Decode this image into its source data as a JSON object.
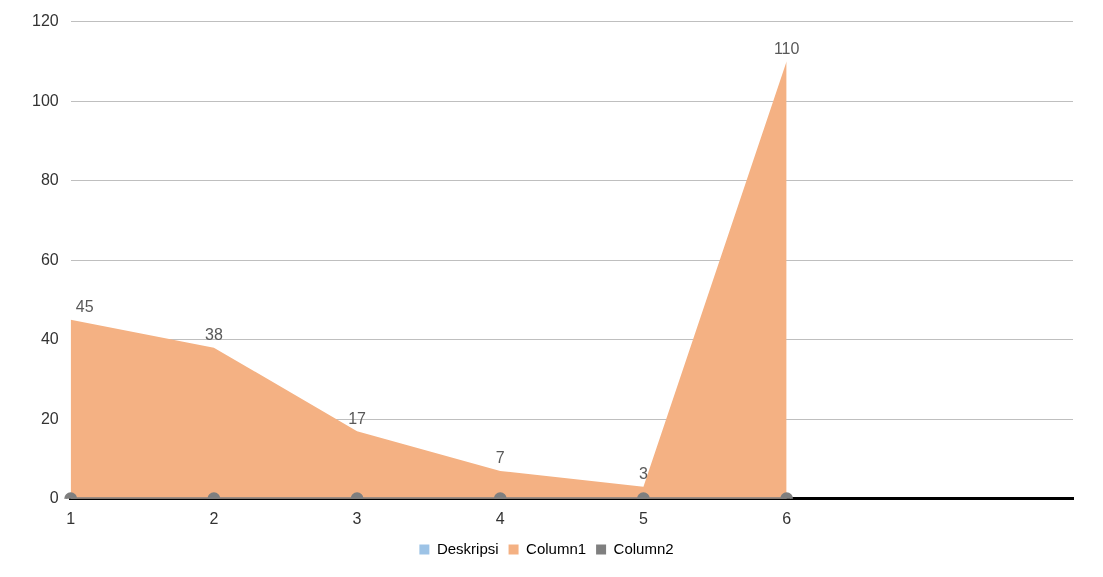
{
  "chart_data": {
    "type": "area",
    "categories": [
      "1",
      "2",
      "3",
      "4",
      "5",
      "6",
      null,
      null
    ],
    "ylim": [
      0,
      120
    ],
    "yticks": [
      0,
      20,
      40,
      60,
      80,
      100,
      120
    ],
    "grid": "y",
    "legend": "bottom",
    "series": [
      {
        "name": "Deskripsi",
        "color": "#9dc3e6",
        "values": [
          null,
          null,
          null,
          null,
          null,
          null,
          null,
          null
        ]
      },
      {
        "name": "Column1",
        "color": "#f4b183",
        "values": [
          45,
          38,
          17,
          7,
          3,
          110,
          null,
          null
        ],
        "value_labels": [
          "45",
          "38",
          "17",
          "7",
          "3",
          "110",
          null,
          null
        ]
      },
      {
        "name": "Column2",
        "color": "#7f7f7f",
        "type": "line",
        "marker": "circle",
        "values": [
          0,
          0,
          0,
          0,
          0,
          0,
          null,
          null
        ]
      }
    ]
  }
}
